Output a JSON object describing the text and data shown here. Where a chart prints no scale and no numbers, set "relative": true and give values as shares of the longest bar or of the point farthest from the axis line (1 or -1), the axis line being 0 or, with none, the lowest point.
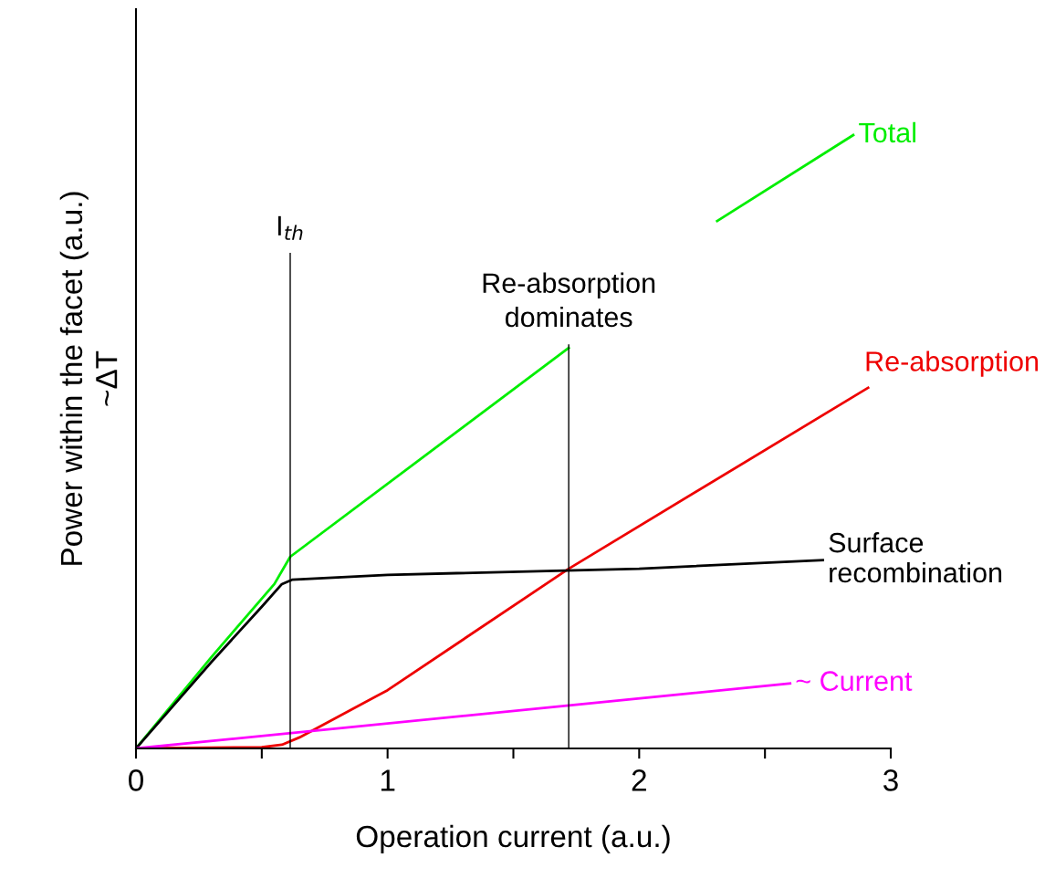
{
  "chart_data": {
    "type": "line",
    "relative": true,
    "xlabel": "Operation current (a.u.)",
    "ylabel": "Power within the facet (a.u.)\n~ΔT",
    "xlim": [
      0,
      3
    ],
    "xticks": [
      0,
      {
        "value": 0.5,
        "label": null
      },
      1,
      {
        "value": 1.5,
        "label": null
      },
      2,
      {
        "value": 2.5,
        "label": null
      },
      3
    ],
    "grid": false,
    "marker": "none",
    "line_style": "solid",
    "series": [
      {
        "name": "Total",
        "color": "#00ee00",
        "x": [
          0,
          0.3,
          0.55,
          0.613,
          1.72,
          null,
          2.31,
          2.851
        ],
        "values": [
          0,
          0.149,
          0.268,
          0.3125,
          0.653,
          null,
          0.86,
          1.0
        ]
      },
      {
        "name": "Re-absorption",
        "color": "#ee0000",
        "x": [
          0,
          0.5,
          0.58,
          0.65,
          1.0,
          1.72,
          2.91
        ],
        "values": [
          0,
          0.002,
          0.006,
          0.018,
          0.095,
          0.293,
          0.588
        ]
      },
      {
        "name": "Surface\nrecombination",
        "color": "#000000",
        "x": [
          0,
          0.3,
          0.5,
          0.58,
          0.62,
          1.0,
          2.0,
          2.73
        ],
        "values": [
          0,
          0.141,
          0.231,
          0.268,
          0.275,
          0.283,
          0.293,
          0.307
        ]
      },
      {
        "name": "~ Current",
        "color": "#ff00ff",
        "x": [
          0,
          2.6
        ],
        "values": [
          0,
          0.106
        ]
      },
      {
        "color": "#000000",
        "x": [
          0.613,
          0.613
        ],
        "values": [
          0,
          0.807
        ]
      },
      {
        "color": "#000000",
        "x": [
          1.72,
          1.72
        ],
        "values": [
          0,
          0.658
        ]
      }
    ],
    "annotations": [
      {
        "text": "I$_{th}$",
        "x": 0.613,
        "y": 0.807
      },
      {
        "text": "Re-absorption\ndominates",
        "x": 1.72,
        "y": 0.658
      }
    ]
  }
}
